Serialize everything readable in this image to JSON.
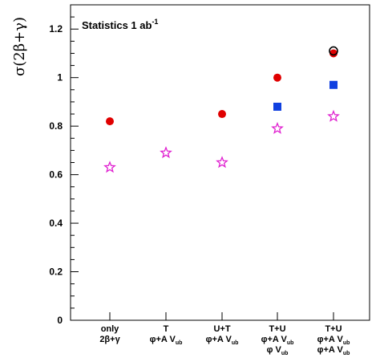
{
  "chart_data": {
    "type": "scatter",
    "ylabel": "σ(2β+γ)",
    "annotation": "Statistics  1 ab",
    "annotation_sup": "-1",
    "ylim": [
      0,
      1.3
    ],
    "yticks": [
      "0",
      "0.2",
      "0.4",
      "0.6",
      "0.8",
      "1",
      "1.2"
    ],
    "categories": [
      [
        "only",
        "2β+γ"
      ],
      [
        "T",
        "φ+A V"
      ],
      [
        "U+T",
        "φ+A V"
      ],
      [
        "T+U",
        "φ+A V",
        "φ V"
      ],
      [
        "T+U",
        "φ+A V",
        "φ+A V"
      ]
    ],
    "category_subscripts": [
      [
        null,
        null
      ],
      [
        null,
        "ub"
      ],
      [
        null,
        "ub"
      ],
      [
        null,
        "ub",
        "ub"
      ],
      [
        null,
        "ub",
        "ub"
      ]
    ],
    "grid": false,
    "series": [
      {
        "marker": "filled-circle",
        "color": "#e00000",
        "values": [
          0.82,
          null,
          0.85,
          1.0,
          1.1
        ]
      },
      {
        "marker": "filled-square",
        "color": "#1040e0",
        "values": [
          null,
          null,
          null,
          0.88,
          0.97
        ]
      },
      {
        "marker": "open-star",
        "color": "#e020d0",
        "values": [
          0.63,
          0.69,
          0.65,
          0.79,
          0.84
        ]
      },
      {
        "marker": "open-circle",
        "color": "#000000",
        "values": [
          null,
          null,
          null,
          null,
          1.11
        ]
      }
    ]
  }
}
